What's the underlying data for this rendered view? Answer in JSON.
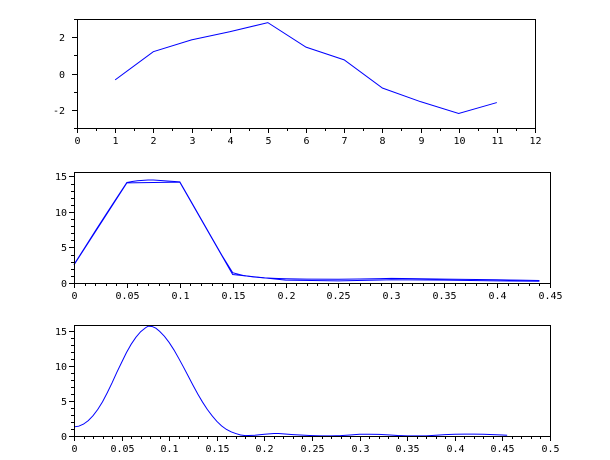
{
  "figure": {
    "background": "#ffffff",
    "axis_color": "#000000",
    "line_color": "#0000ff"
  },
  "chart_data": [
    {
      "name": "top-line-chart",
      "type": "line",
      "grid": false,
      "legend": "none",
      "xlim": [
        0,
        12
      ],
      "ylim": [
        -3,
        3
      ],
      "xticks": {
        "values": [
          0,
          1,
          2,
          3,
          4,
          5,
          6,
          7,
          8,
          9,
          10,
          11,
          12
        ],
        "labels": [
          "0",
          "1",
          "2",
          "3",
          "4",
          "5",
          "6",
          "7",
          "8",
          "9",
          "10",
          "11",
          "12"
        ],
        "minor_step": 0.5
      },
      "yticks": {
        "values": [
          -2,
          0,
          2
        ],
        "labels": [
          "-2",
          "0",
          "2"
        ],
        "minor_step": 1
      },
      "series": [
        {
          "name": "series-1",
          "color": "#0000ff",
          "points": [
            [
              1,
              -0.35
            ],
            [
              2,
              1.2
            ],
            [
              3,
              1.85
            ],
            [
              4,
              2.3
            ],
            [
              5,
              2.8
            ],
            [
              6,
              1.45
            ],
            [
              7,
              0.75
            ],
            [
              8,
              -0.8
            ],
            [
              9,
              -1.55
            ],
            [
              10,
              -2.2
            ],
            [
              11,
              -1.6
            ]
          ]
        }
      ]
    },
    {
      "name": "middle-line-chart",
      "type": "line",
      "grid": false,
      "legend": "none",
      "xlim": [
        0,
        0.45
      ],
      "ylim": [
        0,
        15.63
      ],
      "xticks": {
        "values": [
          0,
          0.05,
          0.1,
          0.15,
          0.2,
          0.25,
          0.3,
          0.35,
          0.4,
          0.45
        ],
        "labels": [
          "0",
          "0.05",
          "0.1",
          "0.15",
          "0.2",
          "0.25",
          "0.3",
          "0.35",
          "0.4",
          "0.45"
        ],
        "minor_step": 0.01
      },
      "yticks": {
        "values": [
          0,
          5,
          10,
          15
        ],
        "labels": [
          "0",
          "5",
          "10",
          "15"
        ],
        "minor_step": 1
      },
      "series": [
        {
          "name": "series-1",
          "color": "#0000ff",
          "points": [
            [
              0,
              2.55
            ],
            [
              0.05,
              14.1
            ],
            [
              0.1,
              14.2
            ],
            [
              0.15,
              1.2
            ],
            [
              0.2,
              0.4
            ],
            [
              0.25,
              0.3
            ],
            [
              0.3,
              0.45
            ],
            [
              0.35,
              0.4
            ],
            [
              0.4,
              0.3
            ],
            [
              0.44,
              0.25
            ]
          ]
        },
        {
          "name": "series-2",
          "color": "#0000ff",
          "points": [
            [
              0,
              2.6
            ],
            [
              0.01,
              4.95
            ],
            [
              0.02,
              7.3
            ],
            [
              0.03,
              9.6
            ],
            [
              0.04,
              11.9
            ],
            [
              0.05,
              14.15
            ],
            [
              0.055,
              14.3
            ],
            [
              0.06,
              14.4
            ],
            [
              0.065,
              14.45
            ],
            [
              0.07,
              14.5
            ],
            [
              0.075,
              14.5
            ],
            [
              0.08,
              14.45
            ],
            [
              0.085,
              14.4
            ],
            [
              0.09,
              14.35
            ],
            [
              0.095,
              14.3
            ],
            [
              0.1,
              14.25
            ],
            [
              0.11,
              11.65
            ],
            [
              0.12,
              9.05
            ],
            [
              0.13,
              6.45
            ],
            [
              0.14,
              3.85
            ],
            [
              0.15,
              1.45
            ],
            [
              0.16,
              1.05
            ],
            [
              0.17,
              0.85
            ],
            [
              0.18,
              0.72
            ],
            [
              0.19,
              0.65
            ],
            [
              0.2,
              0.6
            ],
            [
              0.22,
              0.55
            ],
            [
              0.25,
              0.52
            ],
            [
              0.27,
              0.56
            ],
            [
              0.3,
              0.65
            ],
            [
              0.32,
              0.62
            ],
            [
              0.35,
              0.55
            ],
            [
              0.38,
              0.5
            ],
            [
              0.4,
              0.45
            ],
            [
              0.42,
              0.4
            ],
            [
              0.44,
              0.35
            ]
          ]
        }
      ]
    },
    {
      "name": "bottom-line-chart",
      "type": "line",
      "grid": false,
      "legend": "none",
      "xlim": [
        0,
        0.5
      ],
      "ylim": [
        0,
        15.86
      ],
      "xticks": {
        "values": [
          0,
          0.05,
          0.1,
          0.15,
          0.2,
          0.25,
          0.3,
          0.35,
          0.4,
          0.45,
          0.5
        ],
        "labels": [
          "0",
          "0.05",
          "0.1",
          "0.15",
          "0.2",
          "0.25",
          "0.3",
          "0.35",
          "0.4",
          "0.45",
          "0.5"
        ],
        "minor_step": 0.01
      },
      "yticks": {
        "values": [
          0,
          5,
          10,
          15
        ],
        "labels": [
          "0",
          "5",
          "10",
          "15"
        ],
        "minor_step": 1
      },
      "series": [
        {
          "name": "series-1",
          "color": "#0000ff",
          "points": [
            [
              0,
              1.3
            ],
            [
              0.005,
              1.4
            ],
            [
              0.01,
              1.7
            ],
            [
              0.015,
              2.2
            ],
            [
              0.02,
              2.9
            ],
            [
              0.025,
              3.8
            ],
            [
              0.03,
              4.9
            ],
            [
              0.035,
              6.2
            ],
            [
              0.04,
              7.6
            ],
            [
              0.045,
              9.1
            ],
            [
              0.05,
              10.5
            ],
            [
              0.055,
              11.9
            ],
            [
              0.06,
              13.1
            ],
            [
              0.065,
              14.1
            ],
            [
              0.07,
              14.9
            ],
            [
              0.075,
              15.45
            ],
            [
              0.078,
              15.7
            ],
            [
              0.082,
              15.65
            ],
            [
              0.086,
              15.4
            ],
            [
              0.09,
              14.95
            ],
            [
              0.095,
              14.25
            ],
            [
              0.1,
              13.35
            ],
            [
              0.105,
              12.3
            ],
            [
              0.11,
              11.1
            ],
            [
              0.115,
              9.85
            ],
            [
              0.12,
              8.55
            ],
            [
              0.125,
              7.25
            ],
            [
              0.13,
              6.0
            ],
            [
              0.135,
              4.85
            ],
            [
              0.14,
              3.8
            ],
            [
              0.145,
              2.9
            ],
            [
              0.15,
              2.1
            ],
            [
              0.155,
              1.45
            ],
            [
              0.16,
              0.95
            ],
            [
              0.165,
              0.6
            ],
            [
              0.17,
              0.35
            ],
            [
              0.175,
              0.15
            ],
            [
              0.18,
              0.05
            ],
            [
              0.19,
              0.1
            ],
            [
              0.2,
              0.25
            ],
            [
              0.205,
              0.3
            ],
            [
              0.21,
              0.35
            ],
            [
              0.215,
              0.35
            ],
            [
              0.22,
              0.3
            ],
            [
              0.23,
              0.2
            ],
            [
              0.24,
              0.12
            ],
            [
              0.25,
              0.06
            ],
            [
              0.26,
              0.02
            ],
            [
              0.27,
              0.02
            ],
            [
              0.28,
              0.06
            ],
            [
              0.29,
              0.15
            ],
            [
              0.295,
              0.2
            ],
            [
              0.3,
              0.25
            ],
            [
              0.31,
              0.25
            ],
            [
              0.32,
              0.24
            ],
            [
              0.33,
              0.16
            ],
            [
              0.34,
              0.07
            ],
            [
              0.35,
              0.02
            ],
            [
              0.36,
              0.01
            ],
            [
              0.37,
              0.02
            ],
            [
              0.38,
              0.1
            ],
            [
              0.39,
              0.2
            ],
            [
              0.4,
              0.25
            ],
            [
              0.41,
              0.26
            ],
            [
              0.42,
              0.26
            ],
            [
              0.43,
              0.25
            ],
            [
              0.44,
              0.2
            ],
            [
              0.45,
              0.15
            ],
            [
              0.455,
              0.1
            ]
          ]
        }
      ]
    }
  ]
}
